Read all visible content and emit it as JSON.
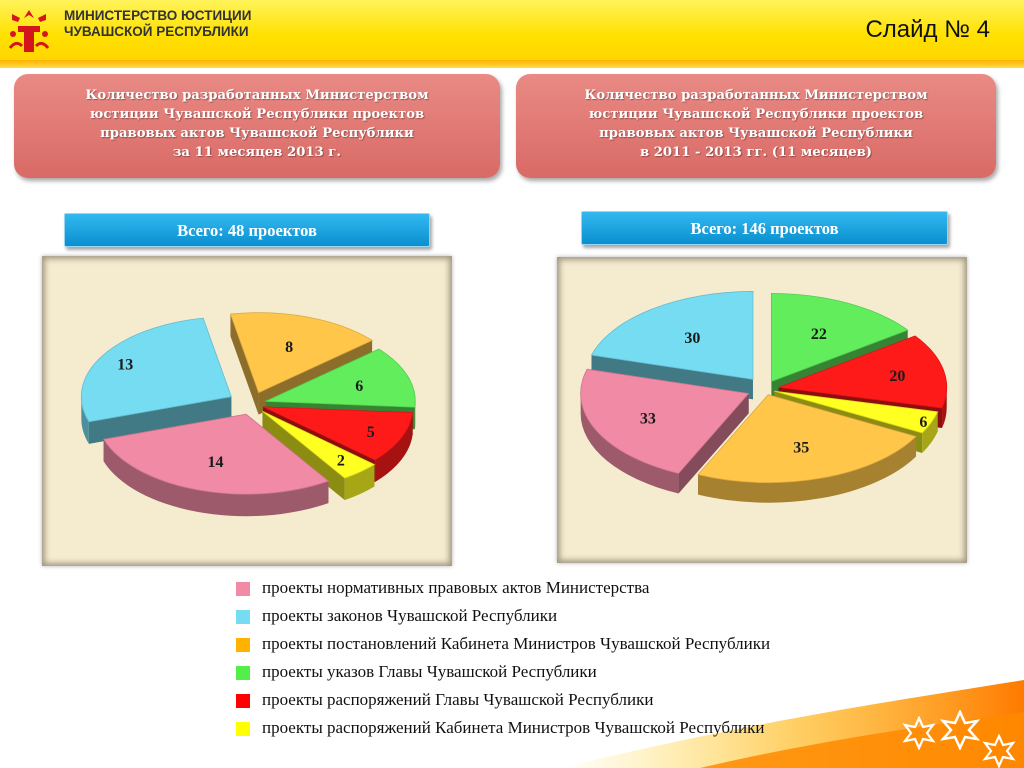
{
  "header": {
    "ministry_line1": "МИНИСТЕРСТВО ЮСТИЦИИ",
    "ministry_line2": "ЧУВАШСКОЙ РЕСПУБЛИКИ",
    "slide_number": "Слайд № 4"
  },
  "panels": {
    "left": {
      "lines": [
        "Количество разработанных Министерством",
        "юстиции Чувашской Республики проектов",
        "правовых актов Чувашской Республики",
        "за 11 месяцев 2013 г."
      ]
    },
    "right": {
      "lines": [
        "Количество разработанных Министерством",
        "юстиции Чувашской Республики проектов",
        "правовых актов Чувашской Республики",
        "в 2011 - 2013 гг. (11 месяцев)"
      ]
    }
  },
  "totals": {
    "left": "Всего: 48 проектов",
    "right": "Всего: 146 проектов"
  },
  "colors": {
    "pink": "#f08aa5",
    "cyan": "#76dcf2",
    "orange": "#ffc64a",
    "green": "#62ee5c",
    "red": "#ff1a1a",
    "yellow": "#ffff22",
    "header_yellow": "#ffe100",
    "panel_red": "#dc7370",
    "total_blue": "#1ba4e0"
  },
  "legend": [
    {
      "label": "проекты нормативных правовых актов Министерства",
      "color": "#f08aa5"
    },
    {
      "label": "проекты законов Чувашской Республики",
      "color": "#76dcf2"
    },
    {
      "label": "проекты постановлений Кабинета Министров Чувашской Республики",
      "color": "#ffb300"
    },
    {
      "label": "проекты указов Главы Чувашской Республики",
      "color": "#52ee4a"
    },
    {
      "label": "проекты распоряжений Главы Чувашской Республики",
      "color": "#ff0000"
    },
    {
      "label": "проекты распоряжений Кабинета Министров Чувашской Республики",
      "color": "#ffff00"
    }
  ],
  "chart_data": [
    {
      "type": "pie",
      "title": "Всего: 48 проектов",
      "categories": [
        "проекты нормативных правовых актов Министерства",
        "проекты законов Чувашской Республики",
        "проекты постановлений Кабинета Министров Чувашской Республики",
        "проекты указов Главы Чувашской Республики",
        "проекты распоряжений Главы Чувашской Республики",
        "проекты распоряжений Кабинета Министров Чувашской Республики"
      ],
      "values": [
        14,
        13,
        8,
        6,
        5,
        2
      ],
      "data_labels": [
        "14",
        "13",
        "8",
        "6",
        "5",
        "2"
      ],
      "legend_placement": "bottom",
      "exploded": true
    },
    {
      "type": "pie",
      "title": "Всего: 146 проектов",
      "categories": [
        "проекты нормативных правовых актов Министерства",
        "проекты законов Чувашской Республики",
        "проекты постановлений Кабинета Министров Чувашской Республики",
        "проекты указов Главы Чувашской Республики",
        "проекты распоряжений Главы Чувашской Республики",
        "проекты распоряжений Кабинета Министров Чувашской Республики"
      ],
      "values": [
        33,
        30,
        35,
        22,
        20,
        6
      ],
      "data_labels": [
        "33",
        "30",
        "35",
        "22",
        "20",
        "6"
      ],
      "legend_placement": "bottom",
      "exploded": true
    }
  ]
}
